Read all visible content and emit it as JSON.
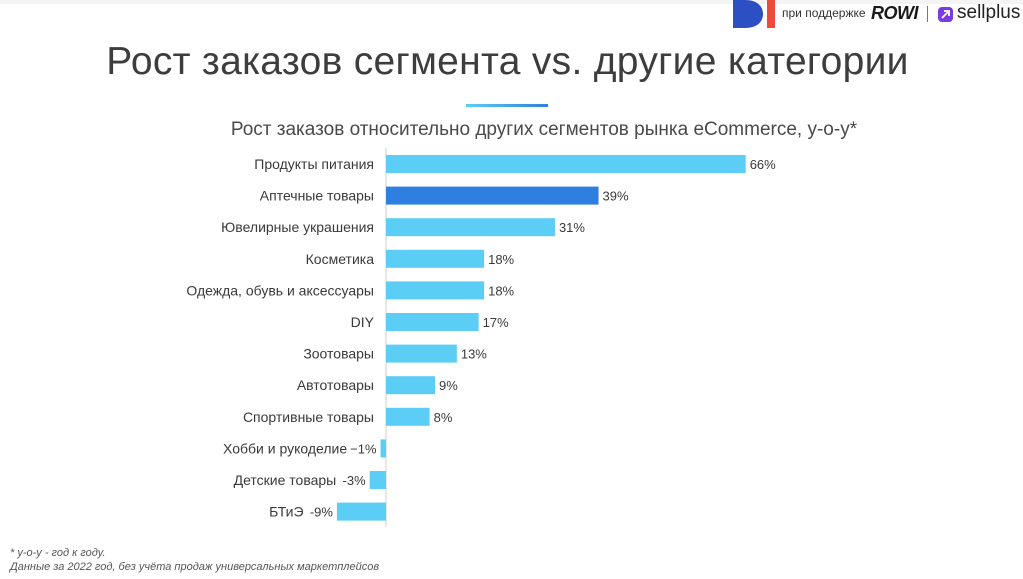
{
  "header": {
    "support_text": "при поддержке",
    "rowi_logo": "ROWI",
    "sellplus_logo": "sellplus",
    "brand_colors": {
      "di_blue": "#2c4fc4",
      "di_red": "#ef4b3c",
      "sellplus": "#7a3ce0"
    }
  },
  "page": {
    "title": "Рост заказов сегмента vs. другие категории"
  },
  "footnotes": [
    "* у-о-у - год к году.",
    "Данные за 2022 год, без учёта продаж универсальных маркетплейсов"
  ],
  "chart_data": {
    "type": "bar",
    "orientation": "horizontal",
    "title": "Рост заказов относительно других сегментов рынка eCommerce, у-о-у*",
    "categories": [
      "Продукты питания",
      "Аптечные товары",
      "Ювелирные украшения",
      "Косметика",
      "Одежда, обувь и аксессуары",
      "DIY",
      "Зоотовары",
      "Автотовары",
      "Спортивные товары",
      "Хобби и рукоделие",
      "Детские товары",
      "БТиЭ"
    ],
    "values": [
      66,
      39,
      31,
      18,
      18,
      17,
      13,
      9,
      8,
      -1,
      -3,
      -9
    ],
    "value_labels": [
      "66%",
      "39%",
      "31%",
      "18%",
      "18%",
      "17%",
      "13%",
      "9%",
      "8%",
      "−1%",
      "-3%",
      "-9%"
    ],
    "highlight_index": 1,
    "colors": {
      "bar": "#5ccdf5",
      "highlight": "#2f7fe0",
      "axis": "#cfcfcf"
    },
    "xlim": [
      -9,
      66
    ],
    "grid": false,
    "legend": "none"
  }
}
